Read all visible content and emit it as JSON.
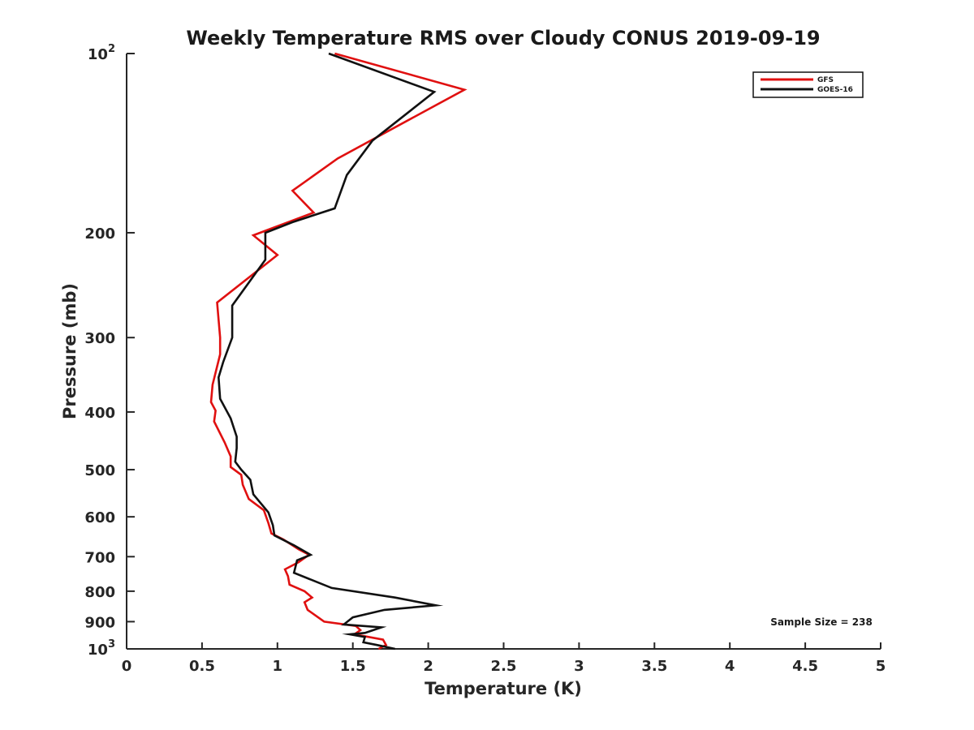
{
  "chart_data": {
    "type": "line",
    "title": "Weekly Temperature RMS over Cloudy CONUS 2019-09-19",
    "xlabel": "Temperature (K)",
    "ylabel": "Pressure (mb)",
    "xlim": [
      0,
      5
    ],
    "ylim": [
      100,
      1000
    ],
    "y_scale": "log",
    "y_reversed": true,
    "grid": false,
    "legend_position": "top-right",
    "x_ticks": [
      0,
      0.5,
      1,
      1.5,
      2,
      2.5,
      3,
      3.5,
      4,
      4.5,
      5
    ],
    "x_tick_labels": [
      "0",
      "0.5",
      "1",
      "1.5",
      "2",
      "2.5",
      "3",
      "3.5",
      "4",
      "4.5",
      "5"
    ],
    "y_ticks": [
      100,
      200,
      300,
      400,
      500,
      600,
      700,
      800,
      900,
      1000
    ],
    "y_tick_labels": [
      {
        "base": "10",
        "exp": "2"
      },
      {
        "text": "200"
      },
      {
        "text": "300"
      },
      {
        "text": "400"
      },
      {
        "text": "500"
      },
      {
        "text": "600"
      },
      {
        "text": "700"
      },
      {
        "text": "800"
      },
      {
        "text": "900"
      },
      {
        "base": "10",
        "exp": "3"
      }
    ],
    "annotation": "Sample Size = 238",
    "series": [
      {
        "name": "GFS",
        "color": "#e01010",
        "points": [
          [
            1.38,
            100
          ],
          [
            2.24,
            115
          ],
          [
            1.4,
            150
          ],
          [
            1.1,
            170
          ],
          [
            1.24,
            185
          ],
          [
            0.84,
            202
          ],
          [
            1.0,
            218
          ],
          [
            0.6,
            262
          ],
          [
            0.61,
            280
          ],
          [
            0.62,
            300
          ],
          [
            0.62,
            320
          ],
          [
            0.57,
            360
          ],
          [
            0.56,
            385
          ],
          [
            0.59,
            398
          ],
          [
            0.58,
            415
          ],
          [
            0.65,
            450
          ],
          [
            0.69,
            475
          ],
          [
            0.69,
            495
          ],
          [
            0.76,
            510
          ],
          [
            0.77,
            530
          ],
          [
            0.81,
            560
          ],
          [
            0.91,
            585
          ],
          [
            0.94,
            615
          ],
          [
            0.96,
            640
          ],
          [
            1.04,
            655
          ],
          [
            1.14,
            680
          ],
          [
            1.21,
            695
          ],
          [
            1.14,
            715
          ],
          [
            1.05,
            735
          ],
          [
            1.07,
            755
          ],
          [
            1.08,
            780
          ],
          [
            1.18,
            800
          ],
          [
            1.23,
            820
          ],
          [
            1.18,
            835
          ],
          [
            1.2,
            860
          ],
          [
            1.31,
            900
          ],
          [
            1.52,
            915
          ],
          [
            1.55,
            930
          ],
          [
            1.51,
            945
          ],
          [
            1.7,
            965
          ],
          [
            1.72,
            985
          ],
          [
            1.67,
            1000
          ]
        ]
      },
      {
        "name": "GOES-16",
        "color": "#111111",
        "points": [
          [
            1.34,
            100
          ],
          [
            2.04,
            116
          ],
          [
            1.63,
            140
          ],
          [
            1.46,
            160
          ],
          [
            1.38,
            182
          ],
          [
            1.1,
            192
          ],
          [
            0.92,
            200
          ],
          [
            0.92,
            222
          ],
          [
            0.7,
            265
          ],
          [
            0.7,
            300
          ],
          [
            0.64,
            330
          ],
          [
            0.61,
            350
          ],
          [
            0.62,
            380
          ],
          [
            0.69,
            410
          ],
          [
            0.73,
            440
          ],
          [
            0.73,
            460
          ],
          [
            0.72,
            485
          ],
          [
            0.76,
            500
          ],
          [
            0.82,
            520
          ],
          [
            0.84,
            550
          ],
          [
            0.94,
            590
          ],
          [
            0.97,
            620
          ],
          [
            0.98,
            645
          ],
          [
            1.11,
            670
          ],
          [
            1.22,
            695
          ],
          [
            1.13,
            710
          ],
          [
            1.11,
            745
          ],
          [
            1.36,
            790
          ],
          [
            1.78,
            820
          ],
          [
            2.05,
            845
          ],
          [
            1.71,
            860
          ],
          [
            1.5,
            885
          ],
          [
            1.44,
            910
          ],
          [
            1.69,
            920
          ],
          [
            1.58,
            940
          ],
          [
            1.48,
            945
          ],
          [
            1.58,
            955
          ],
          [
            1.57,
            975
          ],
          [
            1.66,
            985
          ],
          [
            1.78,
            1000
          ]
        ]
      }
    ]
  }
}
